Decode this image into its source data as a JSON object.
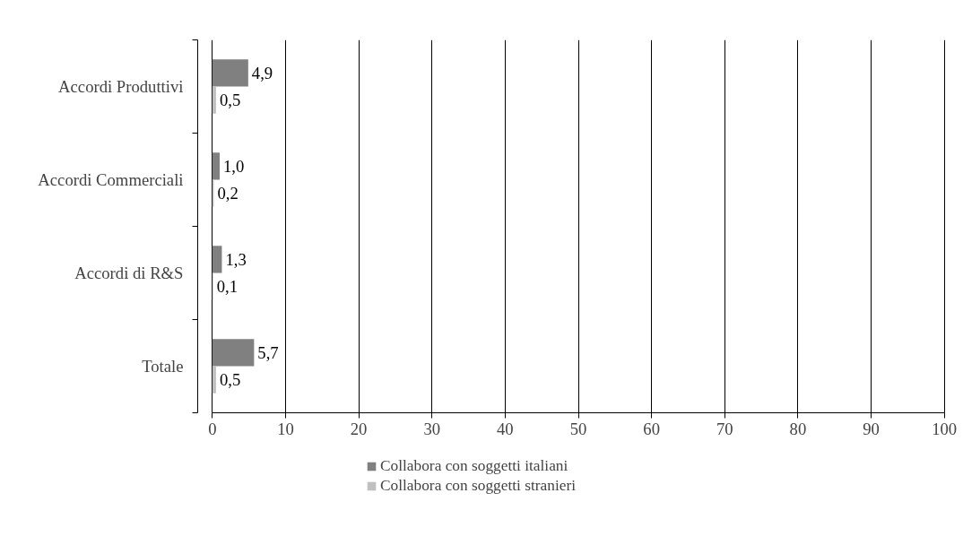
{
  "chart_data": {
    "type": "bar",
    "orientation": "horizontal",
    "categories": [
      "Accordi Produttivi",
      "Accordi Commerciali",
      "Accordi di R&S",
      "Totale"
    ],
    "series": [
      {
        "name": "Collabora con soggetti italiani",
        "color": "#808080",
        "values": [
          4.9,
          1.0,
          1.3,
          5.7
        ],
        "value_labels": [
          "4,9",
          "1,0",
          "1,3",
          "5,7"
        ]
      },
      {
        "name": "Collabora con soggetti stranieri",
        "color": "#c0c0c0",
        "values": [
          0.5,
          0.2,
          0.1,
          0.5
        ],
        "value_labels": [
          "0,5",
          "0,2",
          "0,1",
          "0,5"
        ]
      }
    ],
    "xlim": [
      0,
      100
    ],
    "xticks": [
      0,
      10,
      20,
      30,
      40,
      50,
      60,
      70,
      80,
      90,
      100
    ],
    "grid": "x",
    "legend": "bottom"
  }
}
